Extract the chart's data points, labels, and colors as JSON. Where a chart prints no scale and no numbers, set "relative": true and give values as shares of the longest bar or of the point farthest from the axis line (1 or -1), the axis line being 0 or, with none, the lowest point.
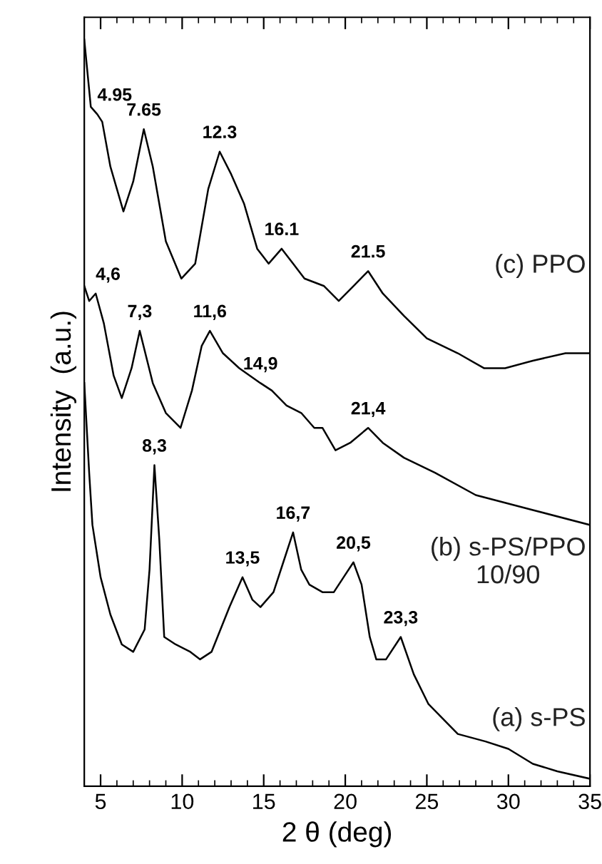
{
  "chart_data": {
    "type": "line",
    "relative": true,
    "xlabel": "2 θ (deg)",
    "ylabel": "Intensity  (a.u.)",
    "xlim": [
      4,
      35
    ],
    "xticks": [
      5,
      10,
      15,
      20,
      25,
      30,
      35
    ],
    "tick_labels": "x",
    "grid": false,
    "legend": false,
    "marker": "none",
    "line_style": "solid",
    "series": [
      {
        "name": "(c) PPO",
        "color": "#000000",
        "x": [
          4.0,
          4.4,
          4.8,
          5.1,
          5.6,
          6.4,
          7.0,
          7.65,
          8.2,
          9.0,
          9.95,
          10.8,
          11.6,
          12.3,
          13.0,
          13.8,
          14.6,
          15.3,
          16.1,
          16.8,
          17.5,
          18.7,
          19.6,
          20.5,
          21.4,
          22.3,
          23.6,
          25.0,
          26.9,
          28.5,
          29.8,
          31.5,
          33.5,
          35.0
        ],
        "values": [
          1.0,
          0.91,
          0.9,
          0.89,
          0.83,
          0.77,
          0.81,
          0.88,
          0.83,
          0.73,
          0.68,
          0.7,
          0.8,
          0.85,
          0.82,
          0.78,
          0.72,
          0.7,
          0.72,
          0.7,
          0.68,
          0.67,
          0.65,
          0.67,
          0.69,
          0.66,
          0.63,
          0.6,
          0.58,
          0.56,
          0.56,
          0.57,
          0.58,
          0.58
        ]
      },
      {
        "name": "(b) s-PS/PPO\n10/90",
        "color": "#000000",
        "x": [
          4.0,
          4.3,
          4.7,
          5.2,
          5.8,
          6.3,
          6.9,
          7.4,
          8.2,
          9.0,
          9.9,
          10.6,
          11.2,
          11.7,
          12.5,
          13.5,
          14.8,
          15.5,
          16.4,
          17.3,
          18.1,
          18.6,
          19.4,
          20.3,
          21.4,
          22.3,
          23.6,
          25.5,
          28.0,
          31.5,
          35.0
        ],
        "values": [
          0.67,
          0.65,
          0.66,
          0.62,
          0.55,
          0.52,
          0.56,
          0.61,
          0.54,
          0.5,
          0.48,
          0.53,
          0.59,
          0.61,
          0.58,
          0.56,
          0.54,
          0.53,
          0.51,
          0.5,
          0.48,
          0.48,
          0.45,
          0.46,
          0.48,
          0.46,
          0.44,
          0.42,
          0.39,
          0.37,
          0.35
        ]
      },
      {
        "name": "(a) s-PS",
        "color": "#000000",
        "x": [
          4.0,
          4.3,
          4.5,
          5.0,
          5.6,
          6.3,
          7.0,
          7.7,
          8.0,
          8.3,
          8.6,
          8.9,
          9.6,
          10.5,
          11.1,
          11.8,
          12.9,
          13.7,
          14.3,
          14.8,
          15.6,
          16.2,
          16.8,
          17.3,
          17.8,
          18.6,
          19.3,
          19.9,
          20.5,
          21.0,
          21.5,
          21.9,
          22.5,
          23.4,
          24.2,
          25.1,
          26.0,
          26.9,
          28.6,
          30.0,
          31.5,
          33.0,
          35.0
        ],
        "values": [
          0.54,
          0.42,
          0.35,
          0.28,
          0.23,
          0.19,
          0.18,
          0.21,
          0.29,
          0.43,
          0.33,
          0.2,
          0.19,
          0.18,
          0.17,
          0.18,
          0.24,
          0.28,
          0.25,
          0.24,
          0.26,
          0.3,
          0.34,
          0.29,
          0.27,
          0.26,
          0.26,
          0.28,
          0.3,
          0.27,
          0.2,
          0.17,
          0.17,
          0.2,
          0.15,
          0.11,
          0.09,
          0.07,
          0.06,
          0.05,
          0.03,
          0.02,
          0.01
        ]
      }
    ],
    "annotations": [
      {
        "text": "4.95",
        "x": 4.8,
        "y": 0.9
      },
      {
        "text": "7.65",
        "x": 7.65,
        "y": 0.88
      },
      {
        "text": "12.3",
        "x": 12.3,
        "y": 0.85
      },
      {
        "text": "16.1",
        "x": 16.1,
        "y": 0.72
      },
      {
        "text": "21.5",
        "x": 21.4,
        "y": 0.69
      },
      {
        "text": "4,6",
        "x": 4.7,
        "y": 0.66
      },
      {
        "text": "7,3",
        "x": 7.4,
        "y": 0.61
      },
      {
        "text": "11,6",
        "x": 11.7,
        "y": 0.61
      },
      {
        "text": "14,9",
        "x": 14.8,
        "y": 0.54
      },
      {
        "text": "21,4",
        "x": 21.4,
        "y": 0.48
      },
      {
        "text": "8,3",
        "x": 8.3,
        "y": 0.43
      },
      {
        "text": "13,5",
        "x": 13.7,
        "y": 0.28
      },
      {
        "text": "16,7",
        "x": 16.8,
        "y": 0.34
      },
      {
        "text": "20,5",
        "x": 20.5,
        "y": 0.3
      },
      {
        "text": "23,3",
        "x": 23.4,
        "y": 0.2
      }
    ]
  }
}
